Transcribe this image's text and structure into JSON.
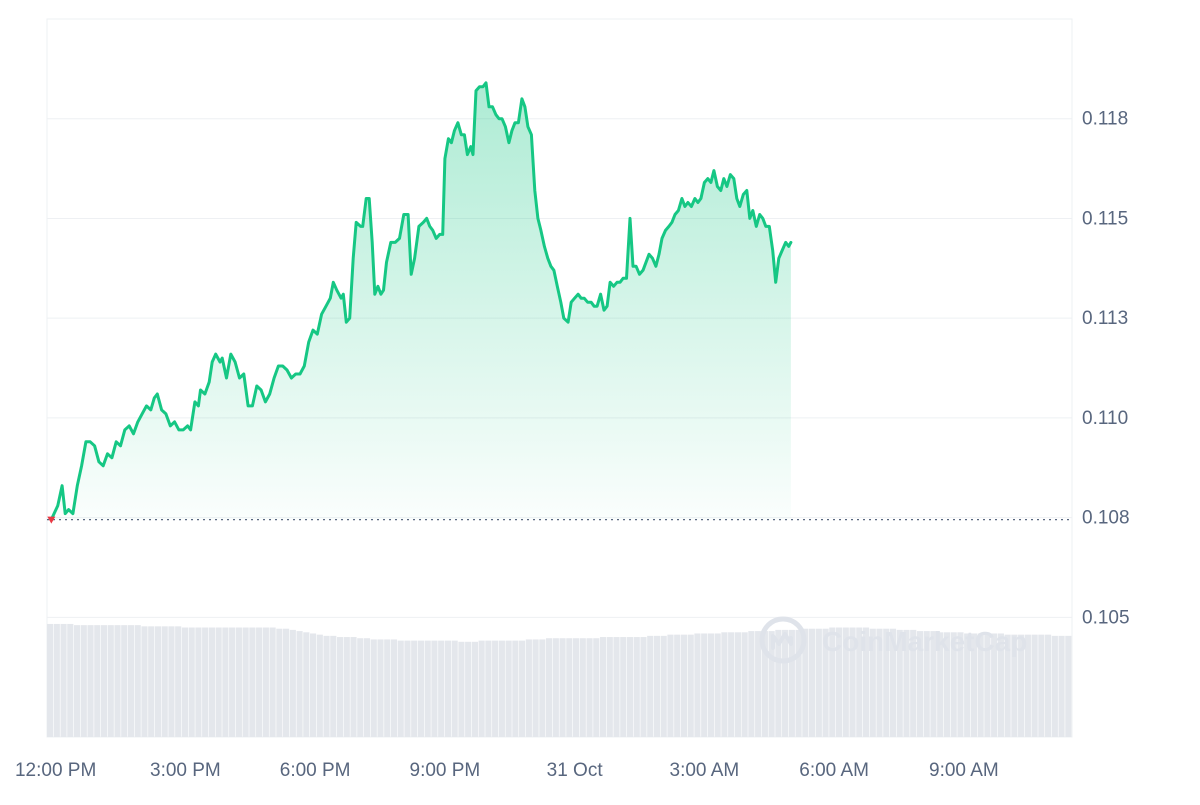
{
  "watermark": {
    "text": "CoinMarketCap",
    "icon": "coinmarketcap-logo-icon"
  },
  "colors": {
    "price_line": "#16c784",
    "area_top": "#16c784",
    "grid": "#eef0f3",
    "axis_text": "#58667e",
    "baseline": "#58667e",
    "start_marker": "#ea3943",
    "volume": "#e4e7ec",
    "watermark": "#dfe3ea"
  },
  "chart_data": {
    "type": "area",
    "title": "",
    "xlabel": "",
    "ylabel": "",
    "x_unit": "hours",
    "xlim": [
      11.8,
      35.5
    ],
    "ylim": [
      0.1025,
      0.1205
    ],
    "x_ticks": [
      {
        "x": 12,
        "label": "12:00 PM"
      },
      {
        "x": 15,
        "label": "3:00 PM"
      },
      {
        "x": 18,
        "label": "6:00 PM"
      },
      {
        "x": 21,
        "label": "9:00 PM"
      },
      {
        "x": 24,
        "label": "31 Oct"
      },
      {
        "x": 27,
        "label": "3:00 AM"
      },
      {
        "x": 30,
        "label": "6:00 AM"
      },
      {
        "x": 33,
        "label": "9:00 AM"
      }
    ],
    "y_ticks": [
      {
        "y": 0.118,
        "label": "0.118"
      },
      {
        "y": 0.1155,
        "label": "0.115"
      },
      {
        "y": 0.113,
        "label": "0.113"
      },
      {
        "y": 0.1105,
        "label": "0.110"
      },
      {
        "y": 0.108,
        "label": "0.108"
      },
      {
        "y": 0.1055,
        "label": "0.105"
      }
    ],
    "grid": true,
    "legend": "none",
    "baseline_value": 0.10795,
    "series": [
      {
        "values": [
          [
            11.9,
            0.10795
          ],
          [
            12.05,
            0.1083
          ],
          [
            12.15,
            0.1088
          ],
          [
            12.22,
            0.1081
          ],
          [
            12.3,
            0.1082
          ],
          [
            12.4,
            0.1081
          ],
          [
            12.5,
            0.1088
          ],
          [
            12.6,
            0.1093
          ],
          [
            12.7,
            0.1099
          ],
          [
            12.8,
            0.1099
          ],
          [
            12.9,
            0.1098
          ],
          [
            13.0,
            0.1094
          ],
          [
            13.1,
            0.1093
          ],
          [
            13.2,
            0.1096
          ],
          [
            13.3,
            0.1095
          ],
          [
            13.4,
            0.1099
          ],
          [
            13.5,
            0.1098
          ],
          [
            13.6,
            0.1102
          ],
          [
            13.7,
            0.1103
          ],
          [
            13.8,
            0.1101
          ],
          [
            13.9,
            0.1104
          ],
          [
            14.0,
            0.1106
          ],
          [
            14.1,
            0.1108
          ],
          [
            14.2,
            0.1107
          ],
          [
            14.28,
            0.111
          ],
          [
            14.35,
            0.1111
          ],
          [
            14.45,
            0.1107
          ],
          [
            14.55,
            0.1106
          ],
          [
            14.65,
            0.1103
          ],
          [
            14.75,
            0.1104
          ],
          [
            14.85,
            0.1102
          ],
          [
            14.95,
            0.1102
          ],
          [
            15.05,
            0.1103
          ],
          [
            15.12,
            0.1102
          ],
          [
            15.22,
            0.1109
          ],
          [
            15.3,
            0.1108
          ],
          [
            15.35,
            0.1112
          ],
          [
            15.45,
            0.1111
          ],
          [
            15.55,
            0.1114
          ],
          [
            15.62,
            0.1119
          ],
          [
            15.7,
            0.1121
          ],
          [
            15.8,
            0.1119
          ],
          [
            15.85,
            0.112
          ],
          [
            15.95,
            0.1115
          ],
          [
            16.05,
            0.1121
          ],
          [
            16.15,
            0.1119
          ],
          [
            16.25,
            0.1115
          ],
          [
            16.35,
            0.1116
          ],
          [
            16.45,
            0.1108
          ],
          [
            16.55,
            0.1108
          ],
          [
            16.65,
            0.1113
          ],
          [
            16.75,
            0.1112
          ],
          [
            16.85,
            0.1109
          ],
          [
            16.95,
            0.1111
          ],
          [
            17.05,
            0.1115
          ],
          [
            17.15,
            0.1118
          ],
          [
            17.25,
            0.1118
          ],
          [
            17.35,
            0.1117
          ],
          [
            17.45,
            0.1115
          ],
          [
            17.55,
            0.1116
          ],
          [
            17.65,
            0.1116
          ],
          [
            17.75,
            0.1118
          ],
          [
            17.85,
            0.1124
          ],
          [
            17.95,
            0.1127
          ],
          [
            18.05,
            0.1126
          ],
          [
            18.15,
            0.1131
          ],
          [
            18.25,
            0.1133
          ],
          [
            18.35,
            0.1135
          ],
          [
            18.42,
            0.1139
          ],
          [
            18.5,
            0.1137
          ],
          [
            18.6,
            0.1135
          ],
          [
            18.65,
            0.1136
          ],
          [
            18.72,
            0.1129
          ],
          [
            18.8,
            0.113
          ],
          [
            18.88,
            0.1145
          ],
          [
            18.95,
            0.1154
          ],
          [
            19.05,
            0.1153
          ],
          [
            19.1,
            0.1153
          ],
          [
            19.18,
            0.116
          ],
          [
            19.25,
            0.116
          ],
          [
            19.32,
            0.1149
          ],
          [
            19.38,
            0.1136
          ],
          [
            19.45,
            0.1138
          ],
          [
            19.52,
            0.1136
          ],
          [
            19.58,
            0.1137
          ],
          [
            19.65,
            0.1144
          ],
          [
            19.75,
            0.1149
          ],
          [
            19.85,
            0.1149
          ],
          [
            19.95,
            0.115
          ],
          [
            20.05,
            0.1156
          ],
          [
            20.15,
            0.1156
          ],
          [
            20.22,
            0.1141
          ],
          [
            20.3,
            0.1145
          ],
          [
            20.4,
            0.1153
          ],
          [
            20.5,
            0.1154
          ],
          [
            20.58,
            0.1155
          ],
          [
            20.65,
            0.1153
          ],
          [
            20.72,
            0.1152
          ],
          [
            20.8,
            0.115
          ],
          [
            20.88,
            0.1151
          ],
          [
            20.95,
            0.1151
          ],
          [
            21.0,
            0.117
          ],
          [
            21.08,
            0.1175
          ],
          [
            21.15,
            0.1174
          ],
          [
            21.22,
            0.1177
          ],
          [
            21.3,
            0.1179
          ],
          [
            21.38,
            0.1176
          ],
          [
            21.45,
            0.1176
          ],
          [
            21.52,
            0.1171
          ],
          [
            21.6,
            0.1173
          ],
          [
            21.65,
            0.1171
          ],
          [
            21.72,
            0.1187
          ],
          [
            21.8,
            0.1188
          ],
          [
            21.88,
            0.1188
          ],
          [
            21.95,
            0.1189
          ],
          [
            22.02,
            0.1183
          ],
          [
            22.1,
            0.1183
          ],
          [
            22.18,
            0.1181
          ],
          [
            22.25,
            0.118
          ],
          [
            22.32,
            0.118
          ],
          [
            22.4,
            0.1178
          ],
          [
            22.48,
            0.1174
          ],
          [
            22.55,
            0.1177
          ],
          [
            22.62,
            0.1179
          ],
          [
            22.7,
            0.1179
          ],
          [
            22.78,
            0.1185
          ],
          [
            22.85,
            0.1183
          ],
          [
            22.92,
            0.1178
          ],
          [
            23.0,
            0.1176
          ],
          [
            23.08,
            0.1162
          ],
          [
            23.15,
            0.1155
          ],
          [
            23.22,
            0.1152
          ],
          [
            23.3,
            0.1148
          ],
          [
            23.38,
            0.1145
          ],
          [
            23.45,
            0.1143
          ],
          [
            23.52,
            0.1142
          ],
          [
            23.6,
            0.1138
          ],
          [
            23.68,
            0.1134
          ],
          [
            23.75,
            0.113
          ],
          [
            23.85,
            0.1129
          ],
          [
            23.92,
            0.1134
          ],
          [
            24.0,
            0.1135
          ],
          [
            24.08,
            0.1136
          ],
          [
            24.15,
            0.1135
          ],
          [
            24.22,
            0.1135
          ],
          [
            24.3,
            0.1134
          ],
          [
            24.38,
            0.1134
          ],
          [
            24.45,
            0.1133
          ],
          [
            24.52,
            0.1133
          ],
          [
            24.6,
            0.1136
          ],
          [
            24.68,
            0.1132
          ],
          [
            24.75,
            0.1133
          ],
          [
            24.82,
            0.1139
          ],
          [
            24.9,
            0.1138
          ],
          [
            24.98,
            0.1139
          ],
          [
            25.05,
            0.1139
          ],
          [
            25.12,
            0.114
          ],
          [
            25.2,
            0.114
          ],
          [
            25.28,
            0.1155
          ],
          [
            25.35,
            0.1143
          ],
          [
            25.42,
            0.1143
          ],
          [
            25.5,
            0.1141
          ],
          [
            25.58,
            0.1142
          ],
          [
            25.65,
            0.1144
          ],
          [
            25.72,
            0.1146
          ],
          [
            25.8,
            0.1145
          ],
          [
            25.88,
            0.1143
          ],
          [
            25.95,
            0.1146
          ],
          [
            26.02,
            0.115
          ],
          [
            26.1,
            0.1152
          ],
          [
            26.18,
            0.1153
          ],
          [
            26.25,
            0.1154
          ],
          [
            26.32,
            0.1156
          ],
          [
            26.4,
            0.1157
          ],
          [
            26.48,
            0.116
          ],
          [
            26.55,
            0.1158
          ],
          [
            26.62,
            0.1159
          ],
          [
            26.7,
            0.1158
          ],
          [
            26.78,
            0.116
          ],
          [
            26.85,
            0.1159
          ],
          [
            26.92,
            0.116
          ],
          [
            27.0,
            0.1164
          ],
          [
            27.08,
            0.1165
          ],
          [
            27.15,
            0.1164
          ],
          [
            27.22,
            0.1167
          ],
          [
            27.3,
            0.1163
          ],
          [
            27.38,
            0.1162
          ],
          [
            27.45,
            0.1165
          ],
          [
            27.52,
            0.1163
          ],
          [
            27.6,
            0.1166
          ],
          [
            27.68,
            0.1165
          ],
          [
            27.75,
            0.116
          ],
          [
            27.82,
            0.1158
          ],
          [
            27.9,
            0.1161
          ],
          [
            27.98,
            0.1162
          ],
          [
            28.05,
            0.1155
          ],
          [
            28.12,
            0.1157
          ],
          [
            28.2,
            0.1153
          ],
          [
            28.28,
            0.1156
          ],
          [
            28.35,
            0.1155
          ],
          [
            28.42,
            0.1153
          ],
          [
            28.5,
            0.1153
          ],
          [
            28.58,
            0.1147
          ],
          [
            28.65,
            0.1139
          ],
          [
            28.72,
            0.1145
          ],
          [
            28.8,
            0.1147
          ],
          [
            28.88,
            0.1149
          ],
          [
            28.95,
            0.1148
          ],
          [
            29.0,
            0.1149
          ]
        ]
      }
    ],
    "volume": [
      0.95,
      0.95,
      0.95,
      0.95,
      0.94,
      0.94,
      0.94,
      0.94,
      0.94,
      0.94,
      0.94,
      0.94,
      0.94,
      0.94,
      0.93,
      0.93,
      0.93,
      0.93,
      0.93,
      0.93,
      0.92,
      0.92,
      0.92,
      0.92,
      0.92,
      0.92,
      0.92,
      0.92,
      0.92,
      0.92,
      0.92,
      0.92,
      0.92,
      0.92,
      0.91,
      0.91,
      0.9,
      0.89,
      0.88,
      0.87,
      0.86,
      0.85,
      0.85,
      0.84,
      0.84,
      0.84,
      0.83,
      0.83,
      0.82,
      0.82,
      0.82,
      0.82,
      0.81,
      0.81,
      0.81,
      0.81,
      0.81,
      0.81,
      0.81,
      0.81,
      0.81,
      0.8,
      0.8,
      0.8,
      0.81,
      0.81,
      0.81,
      0.81,
      0.81,
      0.81,
      0.81,
      0.82,
      0.82,
      0.82,
      0.83,
      0.83,
      0.83,
      0.83,
      0.83,
      0.83,
      0.83,
      0.83,
      0.84,
      0.84,
      0.84,
      0.84,
      0.84,
      0.84,
      0.84,
      0.85,
      0.85,
      0.85,
      0.86,
      0.86,
      0.86,
      0.86,
      0.87,
      0.87,
      0.87,
      0.87,
      0.88,
      0.88,
      0.88,
      0.88,
      0.89,
      0.89,
      0.89,
      0.89,
      0.9,
      0.9,
      0.9,
      0.9,
      0.91,
      0.91,
      0.91,
      0.91,
      0.92,
      0.92,
      0.92,
      0.92,
      0.92,
      0.92,
      0.91,
      0.91,
      0.91,
      0.91,
      0.9,
      0.9,
      0.9,
      0.89,
      0.89,
      0.89,
      0.88,
      0.88,
      0.88,
      0.88,
      0.87,
      0.87,
      0.87,
      0.87,
      0.87,
      0.87,
      0.86,
      0.86,
      0.86,
      0.86,
      0.86,
      0.86,
      0.86,
      0.85,
      0.85,
      0.85
    ]
  }
}
